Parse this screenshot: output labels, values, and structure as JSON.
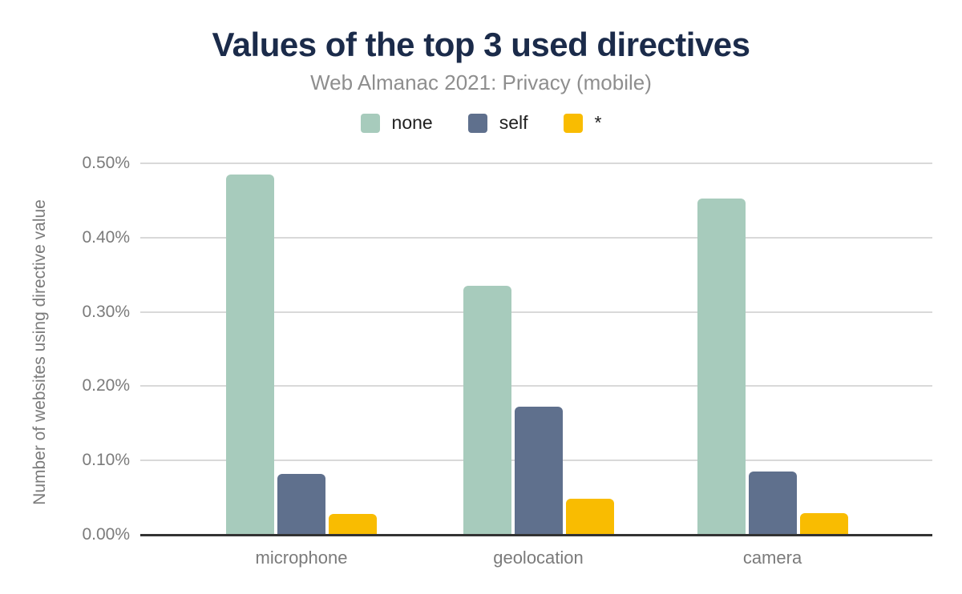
{
  "chart_data": {
    "type": "bar",
    "title": "Values of the top 3 used directives",
    "subtitle": "Web Almanac 2021: Privacy (mobile)",
    "ylabel": "Number of websites using directive value",
    "xlabel": "",
    "categories": [
      "microphone",
      "geolocation",
      "camera"
    ],
    "series": [
      {
        "name": "none",
        "color": "#a7cbbc",
        "values": [
          0.485,
          0.335,
          0.453
        ]
      },
      {
        "name": "self",
        "color": "#5f708d",
        "values": [
          0.082,
          0.172,
          0.085
        ]
      },
      {
        "name": "*",
        "color": "#f9bc01",
        "values": [
          0.028,
          0.049,
          0.029
        ]
      }
    ],
    "value_unit": "%",
    "ylim": [
      0,
      0.5
    ],
    "yticks": [
      "0.00%",
      "0.10%",
      "0.20%",
      "0.30%",
      "0.40%",
      "0.50%"
    ],
    "grid": true,
    "legend_position": "top"
  },
  "colors": {
    "background": "#ffffff",
    "title": "#1b2b4a",
    "subtitle": "#8e8e8e",
    "axis_text": "#7b7b7b",
    "legend_text": "#1f1f1f",
    "gridline": "#d9d9d9",
    "axis_line": "#333333"
  }
}
